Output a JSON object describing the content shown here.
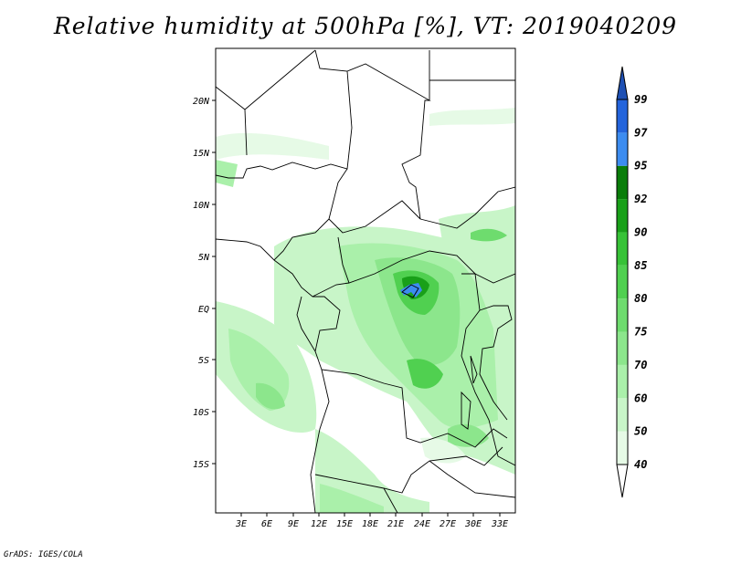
{
  "title": "Relative humidity at 500hPa [%], VT: 2019040209",
  "footer": "GrADS: IGES/COLA",
  "map": {
    "lat_ticks": [
      "20N",
      "15N",
      "10N",
      "5N",
      "EQ",
      "5S",
      "10S",
      "15S"
    ],
    "lon_ticks": [
      "3E",
      "6E",
      "9E",
      "12E",
      "15E",
      "18E",
      "21E",
      "24E",
      "27E",
      "30E",
      "33E"
    ]
  },
  "colorbar": {
    "levels": [
      "40",
      "50",
      "60",
      "70",
      "75",
      "80",
      "85",
      "90",
      "92",
      "95",
      "97",
      "99"
    ],
    "colors": [
      "#ffffff",
      "#e6fae6",
      "#c8f5c8",
      "#aaf0aa",
      "#8ce68c",
      "#6edc6e",
      "#50d050",
      "#37c237",
      "#19a019",
      "#0a7d0a",
      "#3c8cf0",
      "#2364dc",
      "#1e50b4"
    ]
  }
}
